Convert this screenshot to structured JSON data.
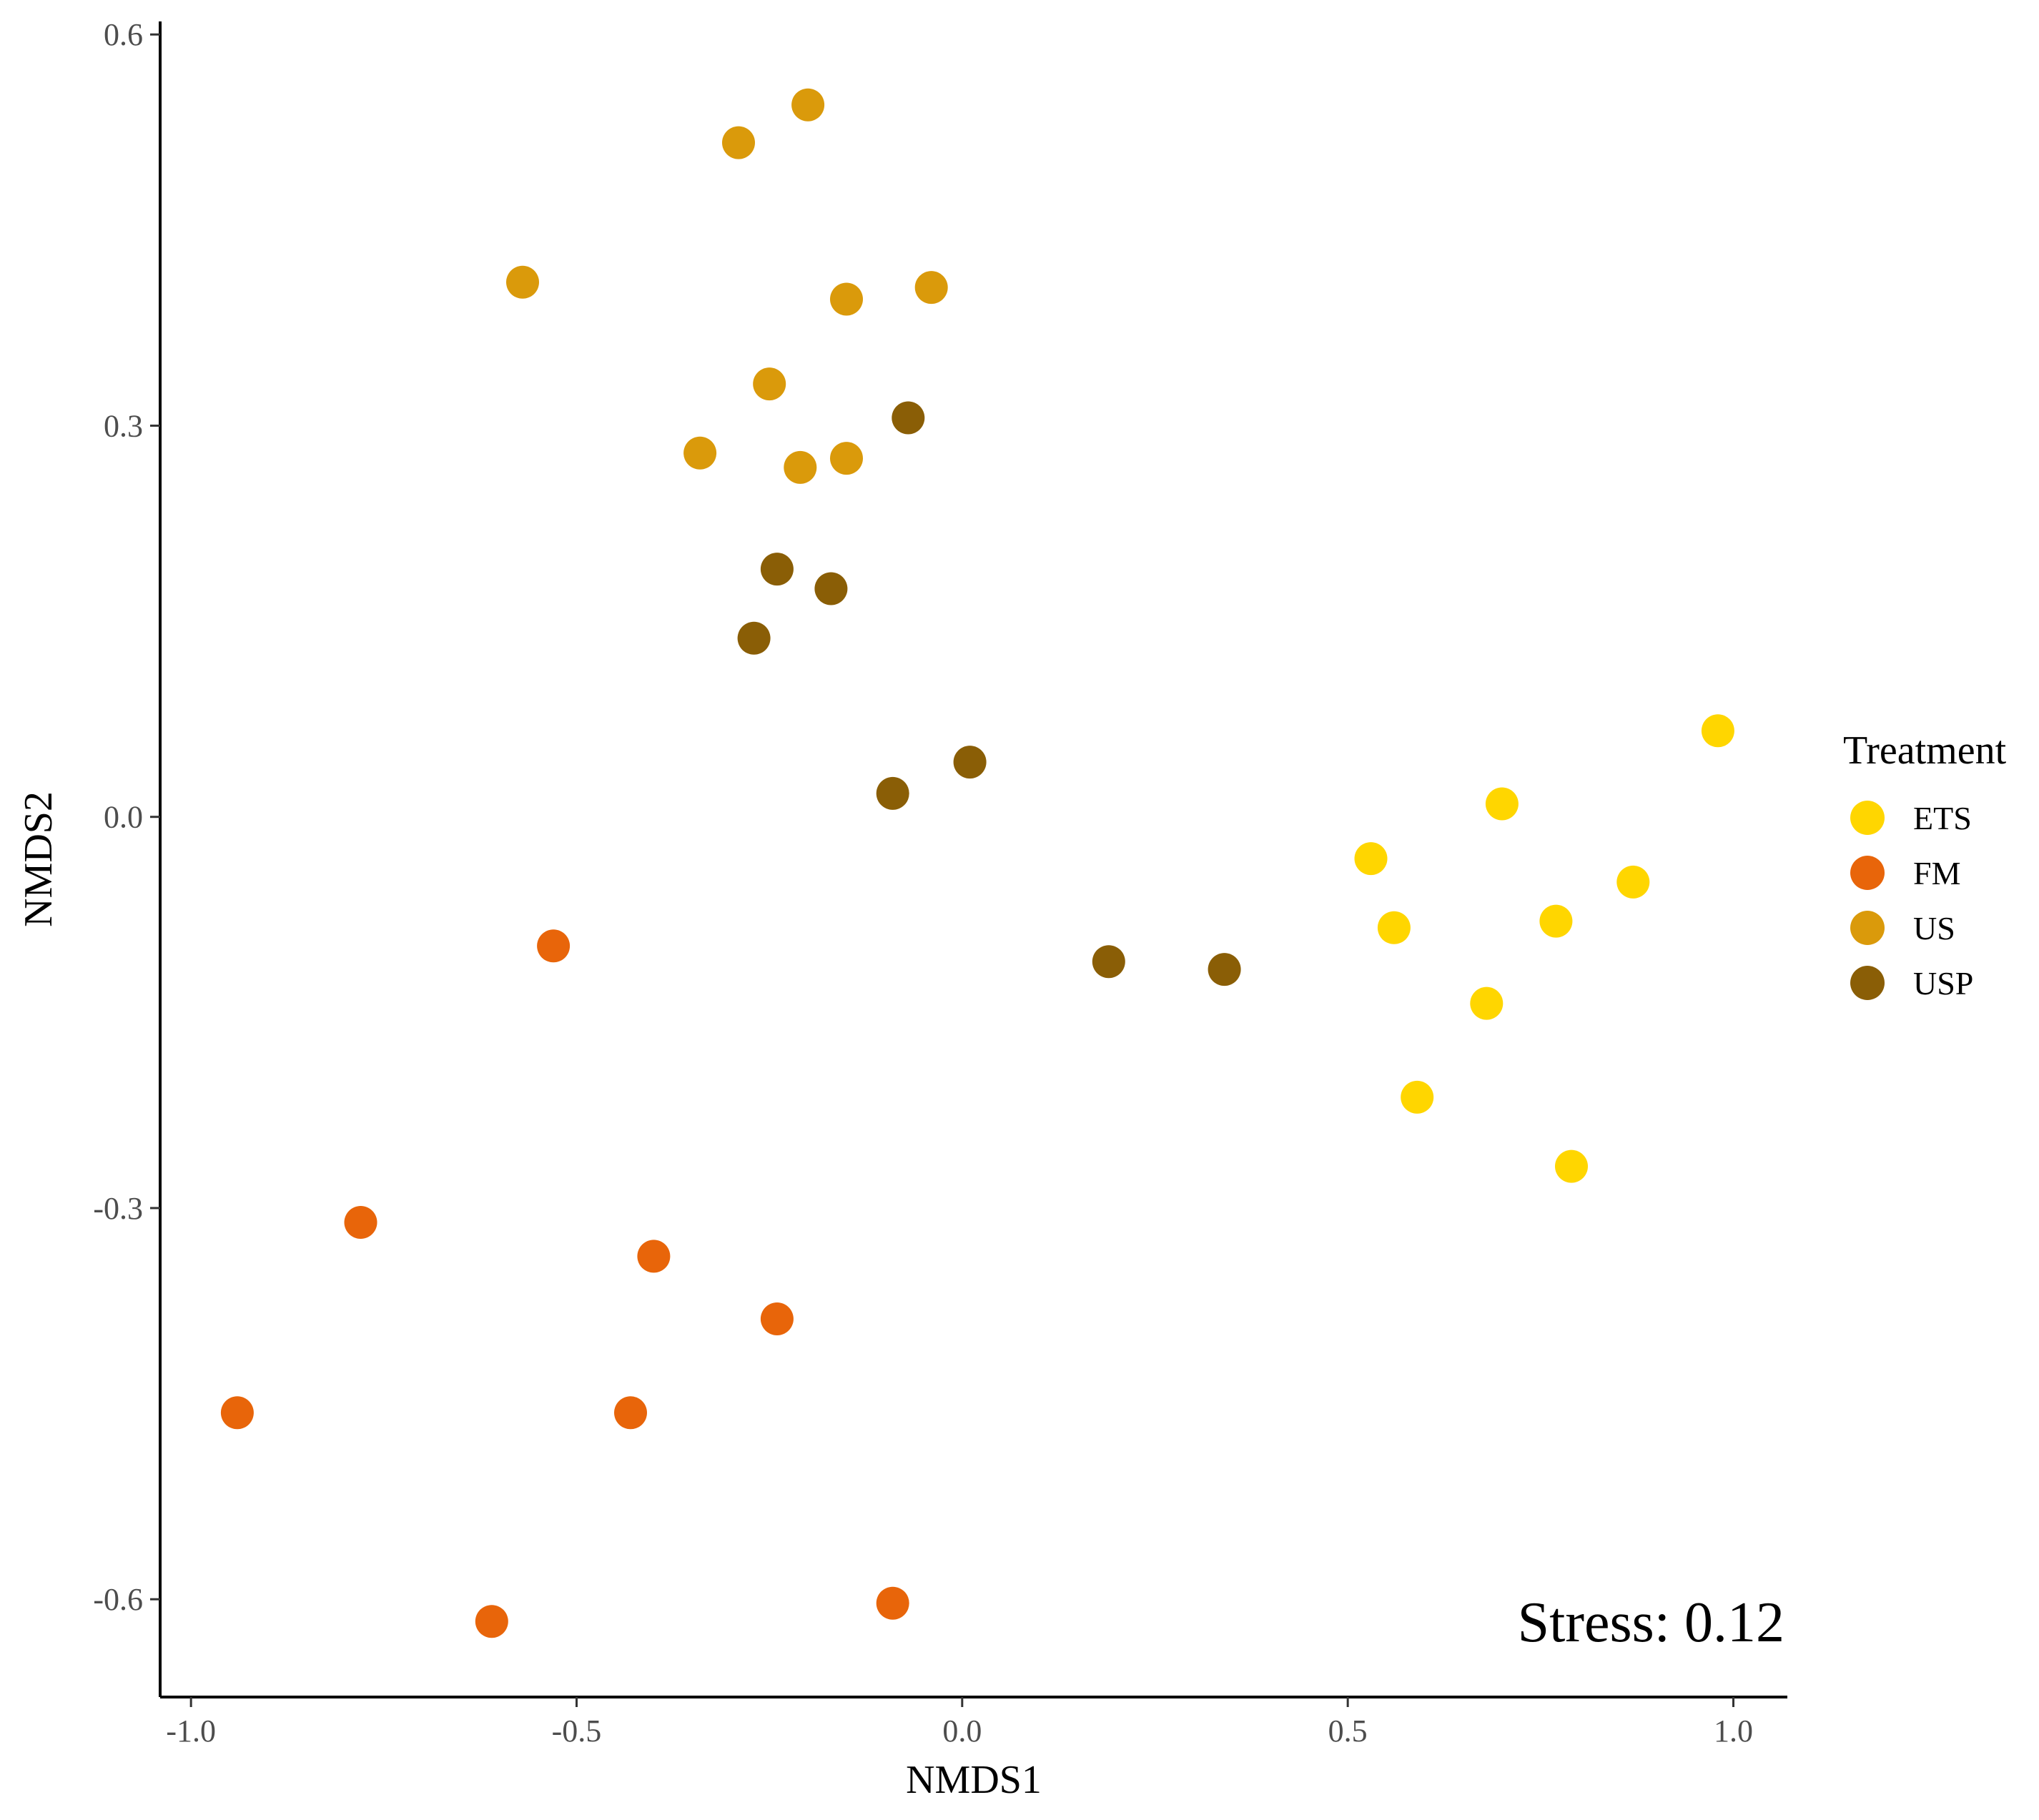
{
  "chart_data": {
    "type": "scatter",
    "title": "",
    "xlabel": "NMDS1",
    "ylabel": "NMDS2",
    "xlim": [
      -1.04,
      1.07
    ],
    "ylim": [
      -0.675,
      0.61
    ],
    "xticks": [
      -1.0,
      -0.5,
      0.0,
      0.5,
      1.0
    ],
    "xtick_labels": [
      "-1.0",
      "-0.5",
      "0.0",
      "0.5",
      "1.0"
    ],
    "yticks": [
      -0.6,
      -0.3,
      0.0,
      0.3,
      0.6
    ],
    "ytick_labels": [
      "-0.6",
      "-0.3",
      "0.0",
      "0.3",
      "0.6"
    ],
    "grid": false,
    "legend": {
      "title": "Treatment",
      "placement": "right"
    },
    "annotation": "Stress: 0.12",
    "series": [
      {
        "name": "ETS",
        "color": "#FFD600",
        "points": [
          [
            0.98,
            0.066
          ],
          [
            0.7,
            0.01
          ],
          [
            0.53,
            -0.032
          ],
          [
            0.87,
            -0.05
          ],
          [
            0.56,
            -0.085
          ],
          [
            0.77,
            -0.08
          ],
          [
            0.68,
            -0.143
          ],
          [
            0.59,
            -0.215
          ],
          [
            0.79,
            -0.268
          ]
        ]
      },
      {
        "name": "FM",
        "color": "#E8650A",
        "points": [
          [
            -0.53,
            -0.099
          ],
          [
            -0.78,
            -0.311
          ],
          [
            -0.4,
            -0.337
          ],
          [
            -0.24,
            -0.385
          ],
          [
            -0.94,
            -0.457
          ],
          [
            -0.43,
            -0.457
          ],
          [
            -0.61,
            -0.617
          ],
          [
            -0.09,
            -0.603
          ]
        ]
      },
      {
        "name": "US",
        "color": "#DA9A0B",
        "points": [
          [
            -0.2,
            0.546
          ],
          [
            -0.29,
            0.517
          ],
          [
            -0.57,
            0.41
          ],
          [
            -0.15,
            0.397
          ],
          [
            -0.04,
            0.406
          ],
          [
            -0.25,
            0.332
          ],
          [
            -0.34,
            0.279
          ],
          [
            -0.21,
            0.268
          ],
          [
            -0.15,
            0.275
          ]
        ]
      },
      {
        "name": "USP",
        "color": "#8A5E06",
        "points": [
          [
            -0.07,
            0.306
          ],
          [
            -0.24,
            0.19
          ],
          [
            -0.17,
            0.175
          ],
          [
            -0.27,
            0.137
          ],
          [
            0.01,
            0.042
          ],
          [
            -0.09,
            0.018
          ],
          [
            0.19,
            -0.111
          ],
          [
            0.34,
            -0.117
          ]
        ]
      }
    ]
  }
}
